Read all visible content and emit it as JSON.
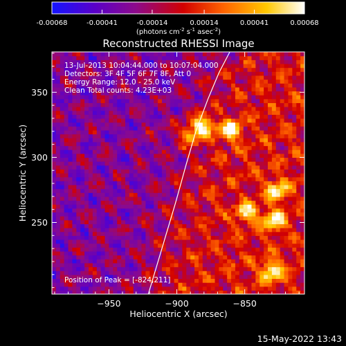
{
  "colorbar": {
    "ticks": [
      "-0.00068",
      "-0.00041",
      "-0.00014",
      "0.00014",
      "0.00041",
      "0.00068"
    ],
    "tick_values": [
      -0.00068,
      -0.00041,
      -0.00014,
      0.00014,
      0.00041,
      0.00068
    ],
    "range": [
      -0.00068,
      0.00068
    ],
    "units_main": "(photons cm",
    "units_exp1": "-2",
    "units_mid": " s",
    "units_exp2": "-1",
    "units_end": " asec",
    "units_exp3": "-2",
    "units_close": ")",
    "colors": [
      "#1414ff",
      "#5a00c8",
      "#8c0a8c",
      "#d20000",
      "#ff6400",
      "#ffc800",
      "#ffffff"
    ]
  },
  "plot": {
    "title": "Reconstructed RHESSI Image",
    "xlabel": "Heliocentric X (arcsec)",
    "ylabel": "Heliocentric Y (arcsec)",
    "info": {
      "time": "13-Jul-2013 10:04:44.000 to 10:07:04.000",
      "detectors": "Detectors: 3F 4F 5F 6F 7F 8F, Att 0",
      "energy": "Energy Range: 12.0 - 25.0 keV",
      "clean": "Clean     Total counts: 4.23E+03",
      "peak": "Position of Peak = [-824,211]"
    },
    "footer_date": "15-May-2022 13:43"
  },
  "chart_data": {
    "type": "heatmap",
    "title": "Reconstructed RHESSI Image",
    "xlabel": "Heliocentric X (arcsec)",
    "ylabel": "Heliocentric Y (arcsec)",
    "xlim": [
      -992,
      -806
    ],
    "ylim": [
      195,
      381
    ],
    "x_ticks": [
      -950,
      -900,
      -850
    ],
    "x_tick_labels": [
      "−950",
      "−900",
      "−850"
    ],
    "y_ticks": [
      250,
      300,
      350
    ],
    "y_tick_labels": [
      "250",
      "300",
      "350"
    ],
    "color_range": [
      -0.00068,
      0.00068
    ],
    "peak_position": [
      -824,
      211
    ],
    "limb_curve": {
      "x": [
        -921,
        -911,
        -901,
        -893,
        -886,
        -877,
        -869,
        -861
      ],
      "y": [
        195,
        230,
        265,
        295,
        320,
        345,
        365,
        381
      ]
    },
    "bright_sources": [
      {
        "x": -880,
        "y": 325,
        "level": 1.0
      },
      {
        "x": -861,
        "y": 321,
        "level": 0.9
      },
      {
        "x": -826,
        "y": 275,
        "level": 0.85
      },
      {
        "x": -828,
        "y": 252,
        "level": 0.9
      },
      {
        "x": -830,
        "y": 213,
        "level": 0.95
      },
      {
        "x": -848,
        "y": 258,
        "level": 0.8
      },
      {
        "x": -890,
        "y": 318,
        "level": 0.75
      }
    ]
  }
}
